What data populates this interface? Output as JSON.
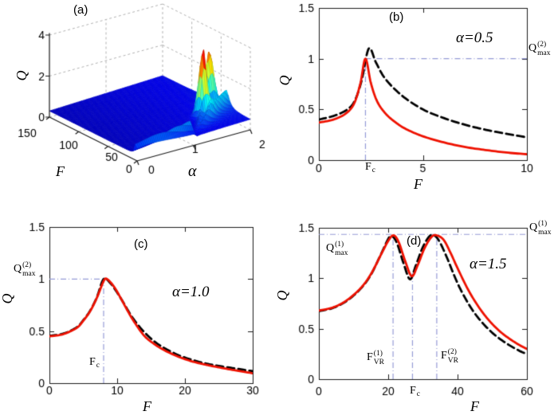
{
  "figure": {
    "background": "#ffffff"
  },
  "colors": {
    "red": "#ee1100",
    "black": "#000000",
    "guide": "#959bd6",
    "axis": "#1a1a1a",
    "grid3d": "#b0b0b0",
    "text": "#000000"
  },
  "labels": {
    "a": {
      "letter": "(a)",
      "q": "Q",
      "f": "F",
      "alpha": "α"
    },
    "b": {
      "letter": "(b)",
      "annotation": "α=0.5",
      "x": "F",
      "y": "Q",
      "fc": {
        "base": "F",
        "sub": "c"
      },
      "qmax": {
        "base": "Q",
        "sup": "(2)",
        "sub": "max"
      }
    },
    "c": {
      "letter": "(c)",
      "annotation": "α=1.0",
      "x": "F",
      "y": "Q",
      "fc": {
        "base": "F",
        "sub": "c"
      },
      "qmax": {
        "base": "Q",
        "sup": "(2)",
        "sub": "max"
      }
    },
    "d": {
      "letter": "(d)",
      "annotation": "α=1.5",
      "x": "F",
      "y": "Q",
      "fc": {
        "base": "F",
        "sub": "c"
      },
      "qmax_left": {
        "base": "Q",
        "sup": "(1)",
        "sub": "max"
      },
      "qmax_right": {
        "base": "Q",
        "sup": "(1)",
        "sub": "max"
      },
      "fvr1": {
        "base": "F",
        "sup": "(1)",
        "sub": "VR"
      },
      "fvr2": {
        "base": "F",
        "sup": "(2)",
        "sub": "VR"
      }
    }
  },
  "chart_data": [
    {
      "id": "a",
      "type": "surface",
      "xlabel": "α",
      "ylabel": "F",
      "zlabel": "Q",
      "xlim": [
        0,
        2
      ],
      "ylim": [
        0,
        150
      ],
      "zlim": [
        0,
        4
      ],
      "xticks": [
        "0",
        "1",
        "2"
      ],
      "yticks": [
        "0",
        "50",
        "100",
        "150"
      ],
      "zticks": [
        "0",
        "2",
        "4"
      ],
      "colormap": "jet",
      "surface_model": {
        "base": [
          0.3,
          0.1
        ],
        "single": {
          "amp": 0.62,
          "fc": [
            2,
            7
          ],
          "w": [
            2,
            3
          ]
        },
        "ridge": {
          "amp": 0.85,
          "p1": [
            3,
            40
          ],
          "p2": [
            3,
            66
          ],
          "w": [
            2.5,
            3.5
          ],
          "second_scale": 0.96,
          "onset": 1.05,
          "ramp": 0.5
        },
        "spikes": [
          {
            "f": 35,
            "a": 1.52,
            "amp": 2.6,
            "wf": 7,
            "wa": 0.08
          },
          {
            "f": 55,
            "a": 1.85,
            "amp": 1.9,
            "wf": 8,
            "wa": 0.08
          }
        ],
        "color_max": 3.8
      }
    },
    {
      "id": "b",
      "type": "line",
      "xlabel": "F",
      "ylabel": "Q",
      "alpha": 0.5,
      "xlim": [
        0,
        10
      ],
      "ylim": [
        0,
        1.5
      ],
      "xticks": [
        "0",
        "5",
        "10"
      ],
      "yticks": [
        "0",
        "0.5",
        "1",
        "1.5"
      ],
      "guides": {
        "fc": 2.24,
        "qmax": 1.0
      },
      "series": [
        {
          "name": "analytical-dashed",
          "style": "dashed",
          "color_key": "black",
          "points": [
            [
              0,
              0.4
            ],
            [
              0.7,
              0.435
            ],
            [
              1.3,
              0.49
            ],
            [
              1.7,
              0.575
            ],
            [
              2.05,
              0.78
            ],
            [
              2.4,
              1.1
            ],
            [
              2.75,
              0.96
            ],
            [
              3.2,
              0.8
            ],
            [
              4,
              0.635
            ],
            [
              5,
              0.5
            ],
            [
              6,
              0.415
            ],
            [
              7,
              0.35
            ],
            [
              8,
              0.3
            ],
            [
              9,
              0.26
            ],
            [
              10,
              0.225
            ]
          ]
        },
        {
          "name": "numerical-solid",
          "style": "solid",
          "color_key": "red",
          "points": [
            [
              0,
              0.37
            ],
            [
              0.7,
              0.4
            ],
            [
              1.3,
              0.46
            ],
            [
              1.7,
              0.56
            ],
            [
              2.0,
              0.76
            ],
            [
              2.24,
              1.0
            ],
            [
              2.5,
              0.76
            ],
            [
              2.8,
              0.58
            ],
            [
              3.2,
              0.46
            ],
            [
              3.7,
              0.37
            ],
            [
              4.2,
              0.305
            ],
            [
              5,
              0.235
            ],
            [
              6,
              0.175
            ],
            [
              7,
              0.13
            ],
            [
              8,
              0.1
            ],
            [
              9,
              0.075
            ],
            [
              10,
              0.058
            ]
          ]
        }
      ]
    },
    {
      "id": "c",
      "type": "line",
      "xlabel": "F",
      "ylabel": "Q",
      "alpha": 1.0,
      "xlim": [
        0,
        30
      ],
      "ylim": [
        0,
        1.5
      ],
      "xticks": [
        "0",
        "10",
        "20",
        "30"
      ],
      "yticks": [
        "0",
        "0.5",
        "1",
        "1.5"
      ],
      "guides": {
        "fc": 8.0,
        "qmax": 1.0
      },
      "series": [
        {
          "name": "analytical-dashed",
          "style": "dashed",
          "color_key": "black",
          "points": [
            [
              0,
              0.455
            ],
            [
              2,
              0.475
            ],
            [
              4,
              0.535
            ],
            [
              5,
              0.605
            ],
            [
              6,
              0.695
            ],
            [
              7,
              0.825
            ],
            [
              8,
              1.0
            ],
            [
              9,
              0.96
            ],
            [
              10,
              0.87
            ],
            [
              11,
              0.765
            ],
            [
              12,
              0.655
            ],
            [
              13,
              0.565
            ],
            [
              14,
              0.49
            ],
            [
              15.5,
              0.4
            ],
            [
              17,
              0.335
            ],
            [
              19,
              0.27
            ],
            [
              21,
              0.225
            ],
            [
              23,
              0.19
            ],
            [
              25,
              0.165
            ],
            [
              27,
              0.145
            ],
            [
              30,
              0.115
            ]
          ]
        },
        {
          "name": "numerical-solid",
          "style": "solid",
          "color_key": "red",
          "points": [
            [
              0,
              0.45
            ],
            [
              2,
              0.47
            ],
            [
              4,
              0.53
            ],
            [
              5,
              0.6
            ],
            [
              6,
              0.69
            ],
            [
              7,
              0.82
            ],
            [
              8,
              0.98
            ],
            [
              8.5,
              1.0
            ],
            [
              9.5,
              0.93
            ],
            [
              10.5,
              0.82
            ],
            [
              11.5,
              0.7
            ],
            [
              12.5,
              0.59
            ],
            [
              14,
              0.455
            ],
            [
              15.5,
              0.375
            ],
            [
              17,
              0.315
            ],
            [
              19,
              0.255
            ],
            [
              21,
              0.21
            ],
            [
              23,
              0.178
            ],
            [
              25,
              0.152
            ],
            [
              27,
              0.128
            ],
            [
              30,
              0.095
            ]
          ]
        }
      ]
    },
    {
      "id": "d",
      "type": "line",
      "xlabel": "F",
      "ylabel": "Q",
      "alpha": 1.5,
      "xlim": [
        0,
        60
      ],
      "ylim": [
        0,
        1.5
      ],
      "xticks": [
        "0",
        "20",
        "40",
        "60"
      ],
      "yticks": [
        "0",
        "0.5",
        "1",
        "1.5"
      ],
      "guides": {
        "qmax": 1.435,
        "fvr1": 21.4,
        "fc": 27.0,
        "fvr2": 34.0
      },
      "series": [
        {
          "name": "analytical-dashed",
          "style": "dashed",
          "color_key": "black",
          "points": [
            [
              0,
              0.675
            ],
            [
              4,
              0.705
            ],
            [
              8,
              0.775
            ],
            [
              12,
              0.895
            ],
            [
              15,
              1.035
            ],
            [
              18,
              1.245
            ],
            [
              20,
              1.39
            ],
            [
              21,
              1.42
            ],
            [
              22.5,
              1.35
            ],
            [
              24.5,
              1.14
            ],
            [
              26.3,
              0.99
            ],
            [
              28,
              1.13
            ],
            [
              30,
              1.31
            ],
            [
              32,
              1.42
            ],
            [
              33.5,
              1.42
            ],
            [
              35,
              1.35
            ],
            [
              37,
              1.2
            ],
            [
              39,
              1.03
            ],
            [
              41,
              0.88
            ],
            [
              44,
              0.7
            ],
            [
              47,
              0.565
            ],
            [
              50,
              0.46
            ],
            [
              53,
              0.38
            ],
            [
              56,
              0.315
            ],
            [
              58.5,
              0.27
            ],
            [
              60,
              0.25
            ]
          ]
        },
        {
          "name": "numerical-solid",
          "style": "solid",
          "color_key": "red",
          "points": [
            [
              0,
              0.68
            ],
            [
              4,
              0.71
            ],
            [
              8,
              0.78
            ],
            [
              12,
              0.9
            ],
            [
              15,
              1.04
            ],
            [
              18,
              1.24
            ],
            [
              20,
              1.37
            ],
            [
              21.5,
              1.425
            ],
            [
              23,
              1.36
            ],
            [
              25,
              1.16
            ],
            [
              26.8,
              1.02
            ],
            [
              28.5,
              1.13
            ],
            [
              30.5,
              1.3
            ],
            [
              32.5,
              1.41
            ],
            [
              34,
              1.425
            ],
            [
              36,
              1.38
            ],
            [
              38,
              1.25
            ],
            [
              40,
              1.1
            ],
            [
              43,
              0.89
            ],
            [
              46,
              0.72
            ],
            [
              49,
              0.585
            ],
            [
              52,
              0.48
            ],
            [
              55,
              0.4
            ],
            [
              58,
              0.335
            ],
            [
              60,
              0.3
            ]
          ]
        }
      ]
    }
  ]
}
